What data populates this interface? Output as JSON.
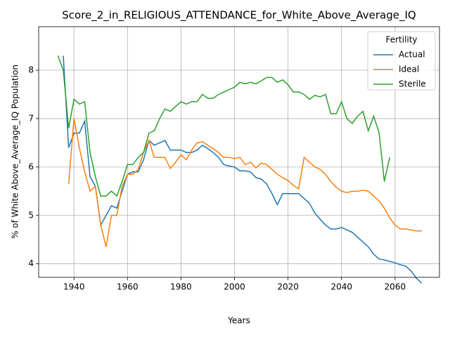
{
  "chart_data": {
    "type": "line",
    "title": "Score_2_in_RELIGIOUS_ATTENDANCE_for_White_Above_Average_IQ",
    "xlabel": "Years",
    "ylabel": "% of White Above_Average_IQ Population",
    "legend_title": "Fertility",
    "legend": "upper right",
    "grid": true,
    "xlim": [
      1926.8,
      2076.6
    ],
    "ylim": [
      3.72,
      8.9
    ],
    "xticks": [
      1940,
      1960,
      1980,
      2000,
      2020,
      2040,
      2060
    ],
    "yticks": [
      4,
      5,
      6,
      7,
      8
    ],
    "x": [
      1934,
      1936,
      1938,
      1940,
      1942,
      1944,
      1946,
      1948,
      1950,
      1952,
      1954,
      1956,
      1958,
      1960,
      1962,
      1964,
      1966,
      1968,
      1970,
      1972,
      1974,
      1976,
      1978,
      1980,
      1982,
      1984,
      1986,
      1988,
      1990,
      1992,
      1994,
      1996,
      1998,
      2000,
      2002,
      2004,
      2006,
      2008,
      2010,
      2012,
      2014,
      2016,
      2018,
      2020,
      2022,
      2024,
      2026,
      2028,
      2030,
      2032,
      2034,
      2036,
      2038,
      2040,
      2042,
      2044,
      2046,
      2048,
      2050,
      2052,
      2054,
      2056,
      2058,
      2060,
      2062,
      2064,
      2066,
      2068,
      2070
    ],
    "series": [
      {
        "name": "Actual",
        "color": "#1f77b4",
        "values": [
          null,
          8.3,
          6.4,
          6.7,
          6.7,
          6.95,
          5.8,
          5.6,
          4.8,
          5.0,
          5.2,
          5.15,
          5.5,
          5.85,
          5.9,
          5.9,
          6.15,
          6.55,
          6.45,
          6.5,
          6.55,
          6.35,
          6.35,
          6.35,
          6.3,
          6.3,
          6.35,
          6.45,
          6.38,
          6.3,
          6.2,
          6.05,
          6.02,
          6.0,
          5.92,
          5.92,
          5.9,
          5.78,
          5.75,
          5.65,
          5.45,
          5.22,
          5.45,
          5.45,
          5.45,
          5.45,
          5.35,
          5.25,
          5.05,
          4.92,
          4.8,
          4.72,
          4.72,
          4.75,
          4.7,
          4.65,
          4.55,
          4.45,
          4.35,
          4.2,
          4.1,
          4.08,
          4.05,
          4.02,
          3.98,
          3.95,
          3.85,
          3.7,
          3.6
        ]
      },
      {
        "name": "Ideal",
        "color": "#ff7f0e",
        "values": [
          null,
          null,
          5.65,
          7.0,
          6.4,
          5.9,
          5.5,
          5.6,
          4.8,
          4.35,
          5.0,
          5.0,
          5.6,
          5.85,
          5.85,
          5.95,
          6.3,
          6.55,
          6.2,
          6.2,
          6.2,
          5.97,
          6.1,
          6.25,
          6.15,
          6.35,
          6.5,
          6.52,
          6.45,
          6.38,
          6.3,
          6.2,
          6.2,
          6.17,
          6.2,
          6.05,
          6.1,
          5.98,
          6.08,
          6.05,
          5.95,
          5.85,
          5.78,
          5.72,
          5.62,
          5.55,
          6.2,
          6.1,
          6.0,
          5.95,
          5.85,
          5.7,
          5.58,
          5.5,
          5.47,
          5.5,
          5.5,
          5.52,
          5.5,
          5.4,
          5.3,
          5.15,
          4.95,
          4.8,
          4.72,
          4.72,
          4.7,
          4.68,
          4.68
        ]
      },
      {
        "name": "Sterile",
        "color": "#2ca02c",
        "values": [
          8.3,
          8.0,
          6.8,
          7.4,
          7.3,
          7.35,
          6.3,
          5.8,
          5.4,
          5.4,
          5.5,
          5.4,
          5.7,
          6.05,
          6.05,
          6.2,
          6.3,
          6.7,
          6.75,
          7.0,
          7.2,
          7.15,
          7.25,
          7.35,
          7.3,
          7.35,
          7.35,
          7.5,
          7.42,
          7.42,
          7.5,
          7.55,
          7.6,
          7.65,
          7.75,
          7.72,
          7.75,
          7.72,
          7.78,
          7.85,
          7.85,
          7.75,
          7.8,
          7.7,
          7.55,
          7.55,
          7.5,
          7.4,
          7.48,
          7.45,
          7.5,
          7.1,
          7.1,
          7.35,
          7.0,
          6.9,
          7.05,
          7.15,
          6.75,
          7.05,
          6.72,
          5.7,
          6.2,
          null,
          null,
          null,
          null,
          null,
          null
        ]
      }
    ]
  }
}
